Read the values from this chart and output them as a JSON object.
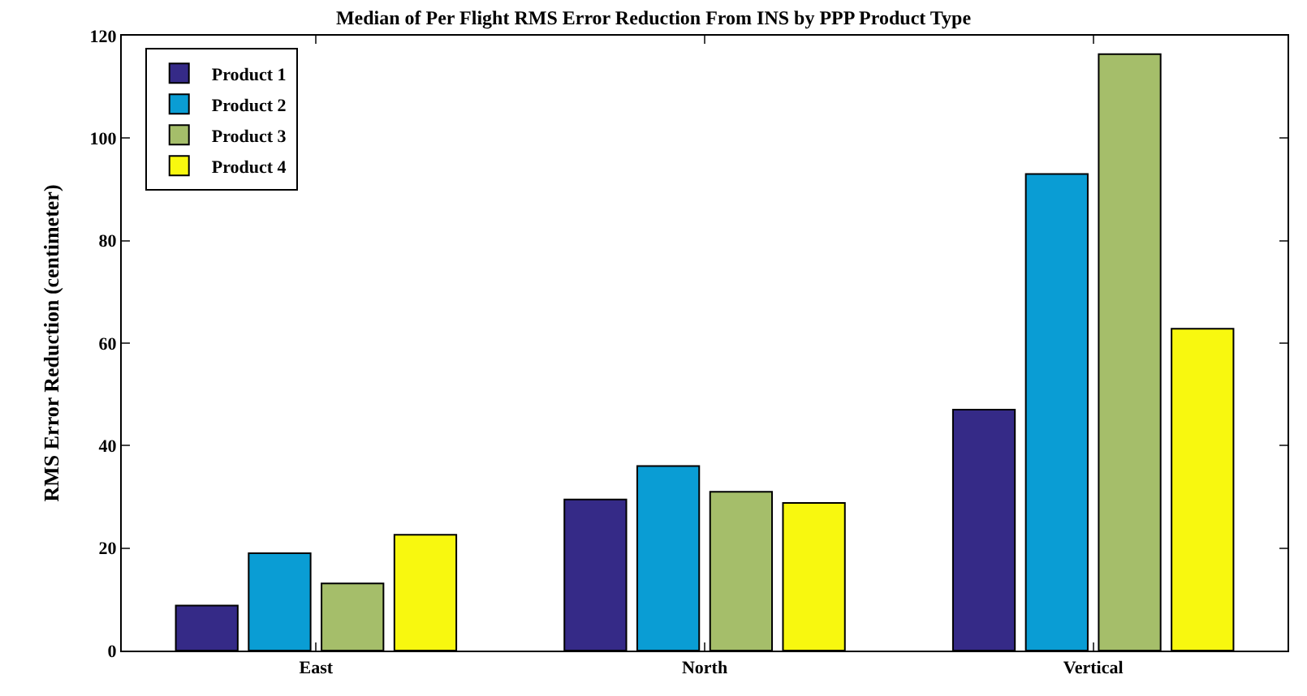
{
  "chart_data": {
    "type": "bar",
    "title": "Median of Per Flight RMS Error Reduction From INS by PPP Product Type",
    "ylabel": "RMS Error Reduction (centimeter)",
    "categories": [
      "East",
      "North",
      "Vertical"
    ],
    "series": [
      {
        "name": "Product 1",
        "color": "#352a87",
        "values": [
          8.8,
          29.5,
          47
        ]
      },
      {
        "name": "Product 2",
        "color": "#0a9dd4",
        "values": [
          19,
          36,
          93
        ]
      },
      {
        "name": "Product 3",
        "color": "#a5be6a",
        "values": [
          13.1,
          31,
          116.4
        ]
      },
      {
        "name": "Product 4",
        "color": "#f8f80f",
        "values": [
          22.6,
          28.8,
          62.8
        ]
      }
    ],
    "ylim": [
      0,
      120
    ],
    "yticks": [
      0,
      20,
      40,
      60,
      80,
      100,
      120
    ],
    "legend": "top left"
  }
}
